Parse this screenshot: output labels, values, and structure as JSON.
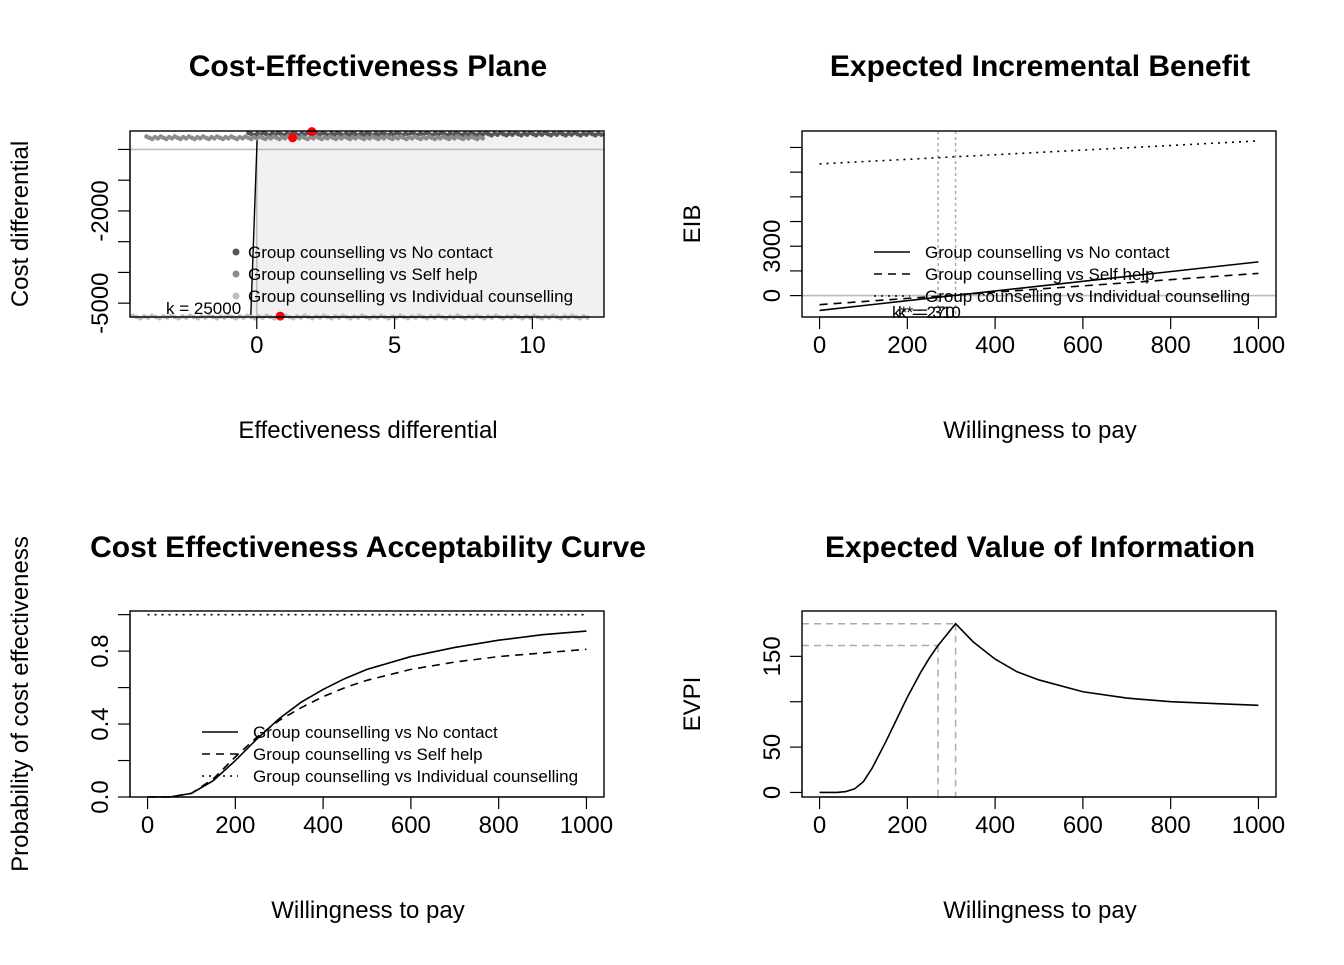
{
  "chart_data": [
    {
      "type": "scatter",
      "title": "Cost-Effectiveness Plane",
      "xlabel": "Effectiveness differential",
      "ylabel": "Cost differential",
      "xlim": [
        -4.6,
        12.6
      ],
      "ylim": [
        -5450,
        600
      ],
      "xticks": [
        0,
        5,
        10
      ],
      "yticks": [
        -5000,
        -2000
      ],
      "annotation": "k = 25000",
      "threshold_wtp": 25000,
      "series": [
        {
          "name": "Group counselling vs No contact",
          "color": "#555555",
          "x_range": [
            -0.3,
            12.5
          ],
          "y": 500,
          "mean": {
            "x": 2.0,
            "y": 580
          }
        },
        {
          "name": "Group counselling vs Self help",
          "color": "#8c8c8c",
          "x_range": [
            -4,
            8.2
          ],
          "y": 380,
          "mean": {
            "x": 1.3,
            "y": 380
          }
        },
        {
          "name": "Group counselling vs Individual counselling",
          "color": "#bdbdbd",
          "x_range": [
            -4.5,
            12
          ],
          "y": -5450,
          "mean": {
            "x": 0.85,
            "y": -5420
          }
        }
      ],
      "legend": "bottom-right",
      "mean_color": "#ff0000"
    },
    {
      "type": "line",
      "title": "Expected Incremental Benefit",
      "xlabel": "Willingness to pay",
      "ylabel": "EIB",
      "xlim": [
        -40,
        1040
      ],
      "ylim": [
        -1300,
        10000
      ],
      "xticks": [
        0,
        200,
        400,
        600,
        800,
        1000
      ],
      "yticks": [
        0,
        3000
      ],
      "series": [
        {
          "name": "Group counselling vs No contact",
          "dash": "solid",
          "x": [
            0,
            1000
          ],
          "y": [
            -900,
            2050
          ]
        },
        {
          "name": "Group counselling vs Self help",
          "dash": "dashed",
          "x": [
            0,
            1000
          ],
          "y": [
            -550,
            1350
          ]
        },
        {
          "name": "Group counselling vs Individual counselling",
          "dash": "dotted",
          "x": [
            0,
            1000
          ],
          "y": [
            8000,
            9400
          ]
        }
      ],
      "breakeven": [
        270,
        310
      ],
      "annotation": "k* = 270",
      "annotation2": "k* = 310",
      "legend": "bottom-right"
    },
    {
      "type": "line",
      "title": "Cost Effectiveness Acceptability Curve",
      "xlabel": "Willingness to pay",
      "ylabel": "Probability of cost effectiveness",
      "xlim": [
        -40,
        1040
      ],
      "ylim": [
        0,
        1.02
      ],
      "xticks": [
        0,
        200,
        400,
        600,
        800,
        1000
      ],
      "yticks": [
        0.0,
        0.4,
        0.8
      ],
      "series": [
        {
          "name": "Group counselling vs No contact",
          "dash": "solid",
          "x": [
            0,
            50,
            100,
            150,
            200,
            250,
            300,
            350,
            400,
            450,
            500,
            600,
            700,
            800,
            900,
            1000
          ],
          "y": [
            0,
            0,
            0.02,
            0.09,
            0.2,
            0.32,
            0.43,
            0.52,
            0.59,
            0.65,
            0.7,
            0.77,
            0.82,
            0.86,
            0.89,
            0.91
          ]
        },
        {
          "name": "Group counselling vs Self help",
          "dash": "dashed",
          "x": [
            0,
            50,
            100,
            150,
            200,
            250,
            300,
            350,
            400,
            450,
            500,
            600,
            700,
            800,
            900,
            1000
          ],
          "y": [
            0,
            0,
            0.02,
            0.1,
            0.22,
            0.33,
            0.42,
            0.49,
            0.55,
            0.6,
            0.64,
            0.7,
            0.74,
            0.77,
            0.79,
            0.81
          ]
        },
        {
          "name": "Group counselling vs Individual counselling",
          "dash": "dotted",
          "x": [
            0,
            1000
          ],
          "y": [
            1.0,
            1.0
          ]
        }
      ],
      "legend": "bottom-right"
    },
    {
      "type": "line",
      "title": "Expected Value of Information",
      "xlabel": "Willingness to pay",
      "ylabel": "EVPI",
      "xlim": [
        -40,
        1040
      ],
      "ylim": [
        -5,
        200
      ],
      "xticks": [
        0,
        200,
        400,
        600,
        800,
        1000
      ],
      "yticks": [
        0,
        50,
        150
      ],
      "series": [
        {
          "name": "EVPI",
          "dash": "solid",
          "x": [
            0,
            40,
            60,
            80,
            100,
            120,
            150,
            180,
            200,
            230,
            250,
            270,
            310,
            330,
            350,
            400,
            450,
            500,
            600,
            700,
            800,
            900,
            1000
          ],
          "y": [
            0,
            0,
            1,
            4,
            12,
            27,
            55,
            85,
            105,
            132,
            148,
            162,
            186,
            176,
            166,
            147,
            133,
            124,
            111,
            104,
            100,
            98,
            96
          ]
        }
      ],
      "reference_points": [
        {
          "x": 270,
          "y": 162
        },
        {
          "x": 310,
          "y": 186
        }
      ]
    }
  ]
}
